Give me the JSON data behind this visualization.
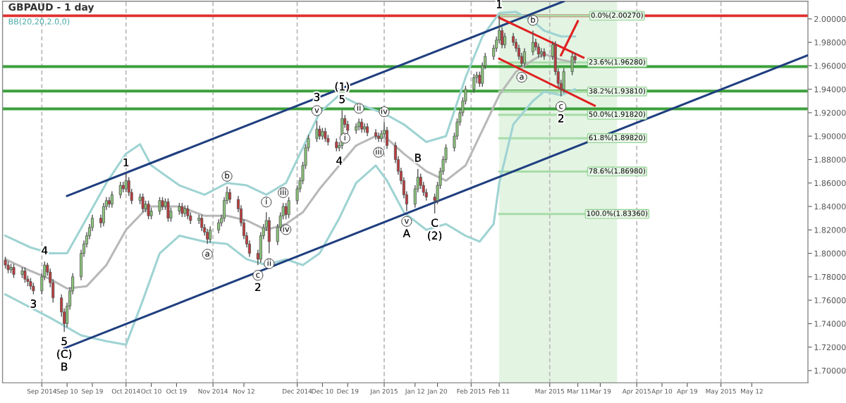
{
  "chart_data": {
    "type": "candlestick",
    "title": "GBPAUD - 1 day",
    "subtitle": "BB(20,20,2.0,0)",
    "xlim": [
      "2014-08-18",
      "2015-06-01"
    ],
    "ylim": [
      1.6895,
      2.0151
    ],
    "xticks": [
      {
        "value": "2014-09-01",
        "label": "Sep 2014"
      },
      {
        "value": "2014-09-10",
        "label": "Sep 10"
      },
      {
        "value": "2014-09-19",
        "label": "Sep 19"
      },
      {
        "value": "2014-10-01",
        "label": "Oct 2014"
      },
      {
        "value": "2014-10-10",
        "label": "Oct 10"
      },
      {
        "value": "2014-10-19",
        "label": "Oct 19"
      },
      {
        "value": "2014-11-01",
        "label": "Nov 2014"
      },
      {
        "value": "2014-11-12",
        "label": "Nov 12"
      },
      {
        "value": "2014-12-01",
        "label": "Dec 2014"
      },
      {
        "value": "2014-12-10",
        "label": "Dec 10"
      },
      {
        "value": "2014-12-19",
        "label": "Dec 19"
      },
      {
        "value": "2015-01-01",
        "label": "Jan 2015"
      },
      {
        "value": "2015-01-12",
        "label": "Jan 12"
      },
      {
        "value": "2015-01-20",
        "label": "Jan 20"
      },
      {
        "value": "2015-02-01",
        "label": "Feb 2015"
      },
      {
        "value": "2015-02-11",
        "label": "Feb 11"
      },
      {
        "value": "2015-03-01",
        "label": "Mar 2015"
      },
      {
        "value": "2015-03-11",
        "label": "Mar 11"
      },
      {
        "value": "2015-03-19",
        "label": "Mar 19"
      },
      {
        "value": "2015-04-01",
        "label": "Apr 2015"
      },
      {
        "value": "2015-04-10",
        "label": "Apr 10"
      },
      {
        "value": "2015-04-19",
        "label": "Apr 19"
      },
      {
        "value": "2015-05-01",
        "label": "May 2015"
      },
      {
        "value": "2015-05-12",
        "label": "May 12"
      }
    ],
    "yticks": [
      {
        "value": 1.7,
        "label": "1.70000"
      },
      {
        "value": 1.72,
        "label": "1.72000"
      },
      {
        "value": 1.74,
        "label": "1.74000"
      },
      {
        "value": 1.76,
        "label": "1.76000"
      },
      {
        "value": 1.78,
        "label": "1.78000"
      },
      {
        "value": 1.8,
        "label": "1.80000"
      },
      {
        "value": 1.82,
        "label": "1.82000"
      },
      {
        "value": 1.84,
        "label": "1.84000"
      },
      {
        "value": 1.86,
        "label": "1.86000"
      },
      {
        "value": 1.88,
        "label": "1.88000"
      },
      {
        "value": 1.9,
        "label": "1.90000"
      },
      {
        "value": 1.92,
        "label": "1.92000"
      },
      {
        "value": 1.94,
        "label": "1.94000"
      },
      {
        "value": 1.96,
        "label": "1.96000"
      },
      {
        "value": 1.98,
        "label": "1.98000"
      },
      {
        "value": 2.0,
        "label": "2.00000"
      }
    ],
    "grid": false,
    "legend": false,
    "bands": [
      {
        "axis": "x",
        "from": "2015-02-11",
        "to": "2015-03-25",
        "label": null,
        "color": "#e3f4e3"
      }
    ],
    "ref_lines": [
      {
        "axis": "x",
        "value": "2014-09-01",
        "label": null,
        "color": "#c0c0c0",
        "line_style": "dashed"
      },
      {
        "axis": "x",
        "value": "2014-10-01",
        "label": null,
        "color": "#c0c0c0",
        "line_style": "dashed"
      },
      {
        "axis": "x",
        "value": "2014-11-01",
        "label": null,
        "color": "#c0c0c0",
        "line_style": "dashed"
      },
      {
        "axis": "x",
        "value": "2014-12-01",
        "label": null,
        "color": "#c0c0c0",
        "line_style": "dashed"
      },
      {
        "axis": "x",
        "value": "2015-01-01",
        "label": null,
        "color": "#c0c0c0",
        "line_style": "dashed"
      },
      {
        "axis": "x",
        "value": "2015-02-01",
        "label": null,
        "color": "#c0c0c0",
        "line_style": "dashed"
      },
      {
        "axis": "x",
        "value": "2015-03-01",
        "label": null,
        "color": "#c0c0c0",
        "line_style": "dashed"
      },
      {
        "axis": "x",
        "value": "2015-04-01",
        "label": null,
        "color": "#c0c0c0",
        "line_style": "dashed"
      },
      {
        "axis": "x",
        "value": "2015-05-01",
        "label": null,
        "color": "#c0c0c0",
        "line_style": "dashed"
      },
      {
        "axis": "y",
        "value": 2.0027,
        "label": null,
        "color": "#e03030",
        "line_style": "solid"
      },
      {
        "axis": "y",
        "value": 1.9593,
        "label": null,
        "color": "#3ca03c",
        "line_style": "solid"
      },
      {
        "axis": "y",
        "value": 1.9384,
        "label": null,
        "color": "#3ca03c",
        "line_style": "solid"
      },
      {
        "axis": "y",
        "value": 1.9233,
        "label": null,
        "color": "#3ca03c",
        "line_style": "solid"
      }
    ],
    "series": [
      {
        "type": "line",
        "color": "#a8dca8",
        "x": [
          "2015-02-11",
          "2015-03-25"
        ],
        "values": [
          2.0027,
          2.0027
        ]
      },
      {
        "type": "line",
        "color": "#a8dca8",
        "x": [
          "2015-02-11",
          "2015-03-25"
        ],
        "values": [
          1.9628,
          1.9628
        ]
      },
      {
        "type": "line",
        "color": "#a8dca8",
        "x": [
          "2015-02-11",
          "2015-03-25"
        ],
        "values": [
          1.9381,
          1.9381
        ]
      },
      {
        "type": "line",
        "color": "#a8dca8",
        "x": [
          "2015-02-11",
          "2015-03-25"
        ],
        "values": [
          1.9182,
          1.9182
        ]
      },
      {
        "type": "line",
        "color": "#a8dca8",
        "x": [
          "2015-02-11",
          "2015-03-25"
        ],
        "values": [
          1.8982,
          1.8982
        ]
      },
      {
        "type": "line",
        "color": "#a8dca8",
        "x": [
          "2015-02-11",
          "2015-03-25"
        ],
        "values": [
          1.8698,
          1.8698
        ]
      },
      {
        "type": "line",
        "color": "#a8dca8",
        "x": [
          "2015-02-11",
          "2015-03-25"
        ],
        "values": [
          1.8336,
          1.8336
        ]
      },
      {
        "type": "line",
        "color": "#9fd3d3",
        "x": [
          "2014-08-19",
          "2014-08-28",
          "2014-09-04",
          "2014-09-10",
          "2014-09-17",
          "2014-09-24",
          "2014-10-01",
          "2014-10-06",
          "2014-10-10",
          "2014-10-20",
          "2014-10-29",
          "2014-11-06",
          "2014-11-13",
          "2014-11-20",
          "2014-11-27",
          "2014-12-03",
          "2014-12-09",
          "2014-12-16",
          "2014-12-22",
          "2014-12-29",
          "2015-01-02",
          "2015-01-08",
          "2015-01-16",
          "2015-01-23",
          "2015-01-30",
          "2015-02-05",
          "2015-02-11",
          "2015-02-17",
          "2015-02-23",
          "2015-02-27",
          "2015-03-05",
          "2015-03-10"
        ],
        "values": [
          1.815,
          1.805,
          1.8,
          1.8,
          1.83,
          1.86,
          1.885,
          1.893,
          1.875,
          1.858,
          1.85,
          1.86,
          1.858,
          1.85,
          1.86,
          1.89,
          1.92,
          1.935,
          1.928,
          1.922,
          1.918,
          1.91,
          1.895,
          1.9,
          1.95,
          1.985,
          2.005,
          2.006,
          1.998,
          1.99,
          1.985,
          1.985
        ]
      },
      {
        "type": "line",
        "color": "#9fd3d3",
        "x": [
          "2014-08-19",
          "2014-09-04",
          "2014-09-15",
          "2014-09-24",
          "2014-10-01",
          "2014-10-07",
          "2014-10-13",
          "2014-10-20",
          "2014-10-29",
          "2014-11-06",
          "2014-11-13",
          "2014-11-20",
          "2014-11-27",
          "2014-12-03",
          "2014-12-09",
          "2014-12-16",
          "2014-12-22",
          "2014-12-29",
          "2015-01-02",
          "2015-01-08",
          "2015-01-16",
          "2015-01-23",
          "2015-01-30",
          "2015-02-04",
          "2015-02-09",
          "2015-02-11",
          "2015-02-16",
          "2015-02-23",
          "2015-02-27",
          "2015-03-05",
          "2015-03-10"
        ],
        "values": [
          1.765,
          1.745,
          1.73,
          1.725,
          1.722,
          1.76,
          1.8,
          1.815,
          1.81,
          1.808,
          1.795,
          1.79,
          1.795,
          1.79,
          1.8,
          1.83,
          1.86,
          1.875,
          1.862,
          1.835,
          1.82,
          1.825,
          1.815,
          1.81,
          1.825,
          1.86,
          1.91,
          1.93,
          1.938,
          1.935,
          1.94
        ]
      },
      {
        "type": "line",
        "color": "#b8b8b8",
        "x": [
          "2014-08-19",
          "2014-08-28",
          "2014-09-04",
          "2014-09-10",
          "2014-09-17",
          "2014-09-24",
          "2014-10-01",
          "2014-10-09",
          "2014-10-20",
          "2014-10-29",
          "2014-11-06",
          "2014-11-13",
          "2014-11-20",
          "2014-11-27",
          "2014-12-03",
          "2014-12-09",
          "2014-12-16",
          "2014-12-22",
          "2014-12-29",
          "2015-01-02",
          "2015-01-08",
          "2015-01-16",
          "2015-01-23",
          "2015-01-30",
          "2015-02-05",
          "2015-02-11",
          "2015-02-17",
          "2015-02-23",
          "2015-02-27",
          "2015-03-05",
          "2015-03-10"
        ],
        "values": [
          1.795,
          1.785,
          1.778,
          1.77,
          1.772,
          1.79,
          1.82,
          1.84,
          1.84,
          1.832,
          1.832,
          1.828,
          1.82,
          1.825,
          1.835,
          1.855,
          1.875,
          1.892,
          1.9,
          1.898,
          1.885,
          1.87,
          1.862,
          1.875,
          1.905,
          1.935,
          1.955,
          1.965,
          1.97,
          1.965,
          1.963
        ]
      },
      {
        "type": "line",
        "color": "#1f3f7f",
        "x": [
          "2014-09-10",
          "2015-03-06"
        ],
        "values": [
          1.849,
          2.015
        ]
      },
      {
        "type": "line",
        "color": "#1f3f7f",
        "x": [
          "2014-09-09",
          "2015-06-01"
        ],
        "values": [
          1.719,
          1.969
        ]
      },
      {
        "type": "line",
        "color": "#e02020",
        "x": [
          "2015-02-11",
          "2015-03-13"
        ],
        "values": [
          2.001,
          1.967
        ]
      },
      {
        "type": "line",
        "color": "#e02020",
        "x": [
          "2015-02-11",
          "2015-03-17"
        ],
        "values": [
          1.966,
          1.926
        ]
      },
      {
        "type": "line",
        "color": "#e02020",
        "x": [
          "2015-03-05",
          "2015-03-11"
        ],
        "values": [
          1.969,
          1.998
        ]
      },
      {
        "color": "#8cc97a",
        "x": [
          "2014-08-21",
          "2014-08-25",
          "2014-09-01",
          "2014-09-02",
          "2014-09-10",
          "2014-09-11",
          "2014-09-12",
          "2014-09-15",
          "2014-09-16",
          "2014-09-17",
          "2014-09-18",
          "2014-09-19",
          "2014-09-23",
          "2014-09-24",
          "2014-09-26",
          "2014-09-29",
          "2014-10-01",
          "2014-10-06",
          "2014-10-08",
          "2014-10-10",
          "2014-10-13",
          "2014-10-15",
          "2014-10-17",
          "2014-10-20",
          "2014-10-22",
          "2014-10-27",
          "2014-10-31",
          "2014-11-03",
          "2014-11-04",
          "2014-11-05",
          "2014-11-06",
          "2014-11-18",
          "2014-11-19",
          "2014-11-20",
          "2014-11-24",
          "2014-11-25",
          "2014-11-26",
          "2014-11-28",
          "2014-12-01",
          "2014-12-02",
          "2014-12-03",
          "2014-12-04",
          "2014-12-05",
          "2014-12-08",
          "2014-12-10",
          "2014-12-16",
          "2014-12-17",
          "2014-12-22",
          "2014-12-23",
          "2014-12-25",
          "2014-12-31",
          "2015-01-01",
          "2015-01-12",
          "2015-01-13",
          "2015-01-20",
          "2015-01-21",
          "2015-01-22",
          "2015-01-23",
          "2015-01-26",
          "2015-01-27",
          "2015-01-28",
          "2015-01-29",
          "2015-01-30",
          "2015-02-02",
          "2015-02-03",
          "2015-02-05",
          "2015-02-06",
          "2015-02-09",
          "2015-02-10",
          "2015-02-11",
          "2015-02-13",
          "2015-02-20",
          "2015-02-23",
          "2015-02-26",
          "2015-03-02",
          "2015-03-06",
          "2015-03-09"
        ],
        "ohlc": [
          [
            1.786,
            1.791,
            1.783,
            1.788
          ],
          [
            1.782,
            1.788,
            1.779,
            1.785
          ],
          [
            1.768,
            1.783,
            1.765,
            1.78
          ],
          [
            1.78,
            1.793,
            1.777,
            1.79
          ],
          [
            1.74,
            1.758,
            1.737,
            1.755
          ],
          [
            1.755,
            1.771,
            1.752,
            1.768
          ],
          [
            1.768,
            1.783,
            1.765,
            1.78
          ],
          [
            1.78,
            1.803,
            1.777,
            1.8
          ],
          [
            1.8,
            1.811,
            1.797,
            1.808
          ],
          [
            1.808,
            1.818,
            1.805,
            1.815
          ],
          [
            1.815,
            1.825,
            1.812,
            1.822
          ],
          [
            1.822,
            1.833,
            1.819,
            1.83
          ],
          [
            1.826,
            1.843,
            1.823,
            1.84
          ],
          [
            1.84,
            1.848,
            1.837,
            1.845
          ],
          [
            1.842,
            1.853,
            1.839,
            1.85
          ],
          [
            1.85,
            1.861,
            1.847,
            1.858
          ],
          [
            1.855,
            1.868,
            1.852,
            1.862
          ],
          [
            1.845,
            1.851,
            1.842,
            1.848
          ],
          [
            1.838,
            1.845,
            1.835,
            1.842
          ],
          [
            1.832,
            1.839,
            1.829,
            1.836
          ],
          [
            1.836,
            1.848,
            1.833,
            1.845
          ],
          [
            1.84,
            1.847,
            1.837,
            1.844
          ],
          [
            1.83,
            1.839,
            1.827,
            1.836
          ],
          [
            1.836,
            1.843,
            1.833,
            1.84
          ],
          [
            1.834,
            1.841,
            1.831,
            1.838
          ],
          [
            1.828,
            1.833,
            1.825,
            1.83
          ],
          [
            1.812,
            1.823,
            1.809,
            1.82
          ],
          [
            1.82,
            1.829,
            1.817,
            1.826
          ],
          [
            1.826,
            1.833,
            1.823,
            1.83
          ],
          [
            1.83,
            1.848,
            1.827,
            1.845
          ],
          [
            1.845,
            1.857,
            1.842,
            1.852
          ],
          [
            1.795,
            1.818,
            1.792,
            1.815
          ],
          [
            1.815,
            1.825,
            1.812,
            1.822
          ],
          [
            1.822,
            1.835,
            1.819,
            1.828
          ],
          [
            1.81,
            1.825,
            1.807,
            1.822
          ],
          [
            1.822,
            1.835,
            1.819,
            1.832
          ],
          [
            1.832,
            1.843,
            1.829,
            1.84
          ],
          [
            1.833,
            1.848,
            1.83,
            1.845
          ],
          [
            1.845,
            1.858,
            1.842,
            1.855
          ],
          [
            1.855,
            1.865,
            1.852,
            1.862
          ],
          [
            1.862,
            1.878,
            1.859,
            1.875
          ],
          [
            1.875,
            1.893,
            1.872,
            1.89
          ],
          [
            1.89,
            1.901,
            1.887,
            1.898
          ],
          [
            1.898,
            1.913,
            1.895,
            1.906
          ],
          [
            1.9,
            1.907,
            1.897,
            1.904
          ],
          [
            1.89,
            1.895,
            1.887,
            1.892
          ],
          [
            1.892,
            1.922,
            1.889,
            1.915
          ],
          [
            1.905,
            1.911,
            1.902,
            1.908
          ],
          [
            1.908,
            1.915,
            1.905,
            1.912
          ],
          [
            1.906,
            1.911,
            1.903,
            1.908
          ],
          [
            1.898,
            1.905,
            1.895,
            1.902
          ],
          [
            1.902,
            1.912,
            1.899,
            1.905
          ],
          [
            1.842,
            1.858,
            1.839,
            1.855
          ],
          [
            1.855,
            1.872,
            1.852,
            1.865
          ],
          [
            1.845,
            1.861,
            1.842,
            1.858
          ],
          [
            1.858,
            1.873,
            1.855,
            1.87
          ],
          [
            1.87,
            1.883,
            1.867,
            1.88
          ],
          [
            1.88,
            1.893,
            1.877,
            1.89
          ],
          [
            1.89,
            1.903,
            1.887,
            1.9
          ],
          [
            1.9,
            1.915,
            1.897,
            1.912
          ],
          [
            1.912,
            1.923,
            1.909,
            1.92
          ],
          [
            1.92,
            1.933,
            1.917,
            1.93
          ],
          [
            1.93,
            1.943,
            1.927,
            1.94
          ],
          [
            1.94,
            1.953,
            1.937,
            1.95
          ],
          [
            1.95,
            1.955,
            1.945,
            1.952
          ],
          [
            1.945,
            1.963,
            1.942,
            1.96
          ],
          [
            1.96,
            1.971,
            1.957,
            1.968
          ],
          [
            1.968,
            1.978,
            1.965,
            1.975
          ],
          [
            1.975,
            1.985,
            1.972,
            1.982
          ],
          [
            1.982,
            2.003,
            1.979,
            1.99
          ],
          [
            1.978,
            1.988,
            1.975,
            1.985
          ],
          [
            1.962,
            1.975,
            1.959,
            1.972
          ],
          [
            1.972,
            1.99,
            1.969,
            1.98
          ],
          [
            1.97,
            1.975,
            1.967,
            1.972
          ],
          [
            1.968,
            1.981,
            1.965,
            1.978
          ],
          [
            1.94,
            1.958,
            1.937,
            1.955
          ],
          [
            1.955,
            1.971,
            1.952,
            1.968
          ]
        ]
      },
      {
        "color": "#c0393b",
        "x": [
          "2014-08-19",
          "2014-08-20",
          "2014-08-22",
          "2014-08-26",
          "2014-08-27",
          "2014-08-28",
          "2014-08-29",
          "2014-09-03",
          "2014-09-04",
          "2014-09-05",
          "2014-09-08",
          "2014-09-09",
          "2014-09-22",
          "2014-09-25",
          "2014-09-30",
          "2014-10-02",
          "2014-10-03",
          "2014-10-07",
          "2014-10-09",
          "2014-10-14",
          "2014-10-16",
          "2014-10-21",
          "2014-10-23",
          "2014-10-24",
          "2014-10-28",
          "2014-10-29",
          "2014-10-30",
          "2014-11-07",
          "2014-11-10",
          "2014-11-11",
          "2014-11-12",
          "2014-11-13",
          "2014-11-14",
          "2014-11-17",
          "2014-11-21",
          "2014-11-27",
          "2014-12-09",
          "2014-12-11",
          "2014-12-12",
          "2014-12-15",
          "2014-12-18",
          "2014-12-19",
          "2014-12-24",
          "2014-12-26",
          "2014-12-29",
          "2014-12-30",
          "2015-01-02",
          "2015-01-05",
          "2015-01-06",
          "2015-01-07",
          "2015-01-08",
          "2015-01-09",
          "2015-01-14",
          "2015-01-15",
          "2015-01-16",
          "2015-01-19",
          "2015-02-04",
          "2015-02-12",
          "2015-02-16",
          "2015-02-17",
          "2015-02-18",
          "2015-02-19",
          "2015-02-24",
          "2015-02-25",
          "2015-02-27",
          "2015-03-03",
          "2015-03-04",
          "2015-03-05",
          "2015-03-10"
        ],
        "ohlc": [
          [
            1.794,
            1.797,
            1.787,
            1.79
          ],
          [
            1.79,
            1.793,
            1.783,
            1.786
          ],
          [
            1.788,
            1.791,
            1.779,
            1.782
          ],
          [
            1.785,
            1.788,
            1.775,
            1.778
          ],
          [
            1.778,
            1.781,
            1.772,
            1.776
          ],
          [
            1.776,
            1.779,
            1.769,
            1.772
          ],
          [
            1.772,
            1.775,
            1.765,
            1.768
          ],
          [
            1.79,
            1.792,
            1.781,
            1.784
          ],
          [
            1.784,
            1.787,
            1.771,
            1.775
          ],
          [
            1.775,
            1.778,
            1.758,
            1.762
          ],
          [
            1.762,
            1.765,
            1.746,
            1.75
          ],
          [
            1.75,
            1.753,
            1.733,
            1.74
          ],
          [
            1.83,
            1.833,
            1.822,
            1.826
          ],
          [
            1.845,
            1.848,
            1.839,
            1.842
          ],
          [
            1.858,
            1.861,
            1.852,
            1.855
          ],
          [
            1.862,
            1.865,
            1.849,
            1.852
          ],
          [
            1.852,
            1.855,
            1.842,
            1.845
          ],
          [
            1.848,
            1.851,
            1.835,
            1.838
          ],
          [
            1.842,
            1.845,
            1.829,
            1.832
          ],
          [
            1.845,
            1.848,
            1.837,
            1.84
          ],
          [
            1.844,
            1.847,
            1.827,
            1.83
          ],
          [
            1.84,
            1.843,
            1.831,
            1.834
          ],
          [
            1.838,
            1.841,
            1.829,
            1.832
          ],
          [
            1.832,
            1.835,
            1.825,
            1.828
          ],
          [
            1.83,
            1.833,
            1.819,
            1.822
          ],
          [
            1.822,
            1.825,
            1.815,
            1.818
          ],
          [
            1.818,
            1.821,
            1.808,
            1.812
          ],
          [
            1.852,
            1.855,
            1.843,
            1.846
          ],
          [
            1.846,
            1.849,
            1.835,
            1.838
          ],
          [
            1.838,
            1.841,
            1.823,
            1.826
          ],
          [
            1.826,
            1.829,
            1.812,
            1.815
          ],
          [
            1.815,
            1.818,
            1.805,
            1.808
          ],
          [
            1.808,
            1.811,
            1.797,
            1.8
          ],
          [
            1.8,
            1.803,
            1.79,
            1.795
          ],
          [
            1.828,
            1.831,
            1.8,
            1.81
          ],
          [
            1.84,
            1.843,
            1.829,
            1.833
          ],
          [
            1.906,
            1.909,
            1.897,
            1.9
          ],
          [
            1.904,
            1.907,
            1.895,
            1.898
          ],
          [
            1.898,
            1.901,
            1.892,
            1.895
          ],
          [
            1.895,
            1.898,
            1.887,
            1.89
          ],
          [
            1.915,
            1.918,
            1.907,
            1.91
          ],
          [
            1.91,
            1.913,
            1.902,
            1.905
          ],
          [
            1.912,
            1.915,
            1.903,
            1.906
          ],
          [
            1.908,
            1.911,
            1.9,
            1.903
          ],
          [
            1.903,
            1.906,
            1.897,
            1.9
          ],
          [
            1.9,
            1.903,
            1.895,
            1.898
          ],
          [
            1.905,
            1.908,
            1.889,
            1.892
          ],
          [
            1.892,
            1.895,
            1.877,
            1.88
          ],
          [
            1.88,
            1.883,
            1.867,
            1.87
          ],
          [
            1.87,
            1.873,
            1.859,
            1.862
          ],
          [
            1.862,
            1.865,
            1.847,
            1.85
          ],
          [
            1.85,
            1.853,
            1.836,
            1.842
          ],
          [
            1.865,
            1.868,
            1.855,
            1.858
          ],
          [
            1.858,
            1.861,
            1.849,
            1.852
          ],
          [
            1.852,
            1.855,
            1.845,
            1.848
          ],
          [
            1.848,
            1.851,
            1.834,
            1.845
          ],
          [
            1.952,
            1.955,
            1.942,
            1.945
          ],
          [
            1.99,
            1.993,
            1.975,
            1.978
          ],
          [
            1.985,
            1.988,
            1.977,
            1.98
          ],
          [
            1.98,
            1.983,
            1.972,
            1.975
          ],
          [
            1.975,
            1.978,
            1.965,
            1.968
          ],
          [
            1.968,
            1.971,
            1.959,
            1.962
          ],
          [
            1.98,
            1.983,
            1.973,
            1.976
          ],
          [
            1.976,
            1.979,
            1.967,
            1.97
          ],
          [
            1.972,
            1.975,
            1.965,
            1.968
          ],
          [
            1.978,
            1.981,
            1.952,
            1.955
          ],
          [
            1.955,
            1.958,
            1.942,
            1.945
          ],
          [
            1.945,
            1.948,
            1.934,
            1.94
          ],
          [
            1.968,
            1.971,
            1.962,
            1.965
          ]
        ]
      }
    ],
    "annotations": [
      {
        "text": "3",
        "x": "2014-08-29",
        "y": 1.765
      },
      {
        "text": "4",
        "x": "2014-09-02",
        "y": 1.793
      },
      {
        "text": "5\n(C)\nB",
        "x": "2014-09-09",
        "y": 1.733
      },
      {
        "text": "1",
        "x": "2014-10-01",
        "y": 1.868
      },
      {
        "text": "a",
        "x": "2014-10-30",
        "y": 1.808
      },
      {
        "text": "b",
        "x": "2014-11-06",
        "y": 1.857
      },
      {
        "text": "c\n2",
        "x": "2014-11-17",
        "y": 1.79
      },
      {
        "text": "i",
        "x": "2014-11-20",
        "y": 1.835
      },
      {
        "text": "ii",
        "x": "2014-11-21",
        "y": 1.8
      },
      {
        "text": "iii",
        "x": "2014-11-26",
        "y": 1.843
      },
      {
        "text": "iv",
        "x": "2014-11-27",
        "y": 1.829
      },
      {
        "text": "3\nv",
        "x": "2014-12-08",
        "y": 1.913
      },
      {
        "text": "4",
        "x": "2014-12-16",
        "y": 1.887
      },
      {
        "text": "(1)\n5",
        "x": "2014-12-17",
        "y": 1.922
      },
      {
        "text": "i",
        "x": "2014-12-18",
        "y": 1.907
      },
      {
        "text": "ii",
        "x": "2014-12-23",
        "y": 1.915
      },
      {
        "text": "iii",
        "x": "2014-12-30",
        "y": 1.895
      },
      {
        "text": "iv",
        "x": "2015-01-01",
        "y": 1.912
      },
      {
        "text": "v\nA",
        "x": "2015-01-09",
        "y": 1.836
      },
      {
        "text": "B",
        "x": "2015-01-13",
        "y": 1.872
      },
      {
        "text": "C\n(2)",
        "x": "2015-01-19",
        "y": 1.834
      },
      {
        "text": "1",
        "x": "2015-02-11",
        "y": 2.003
      },
      {
        "text": "a",
        "x": "2015-02-19",
        "y": 1.959
      },
      {
        "text": "b",
        "x": "2015-02-23",
        "y": 1.99
      },
      {
        "text": "c\n2",
        "x": "2015-03-05",
        "y": 1.934
      },
      {
        "text": "0.0%(2.00270)",
        "x": "2015-03-25",
        "y": 2.0027
      },
      {
        "text": "23.6%(1.96280)",
        "x": "2015-03-25",
        "y": 1.9628
      },
      {
        "text": "38.2%(1.93810)",
        "x": "2015-03-25",
        "y": 1.9381
      },
      {
        "text": "50.0%(1.91820)",
        "x": "2015-03-25",
        "y": 1.9182
      },
      {
        "text": "61.8%(1.89820)",
        "x": "2015-03-25",
        "y": 1.8982
      },
      {
        "text": "78.6%(1.86980)",
        "x": "2015-03-25",
        "y": 1.8698
      },
      {
        "text": "100.0%(1.83360)",
        "x": "2015-03-25",
        "y": 1.8336
      }
    ]
  }
}
